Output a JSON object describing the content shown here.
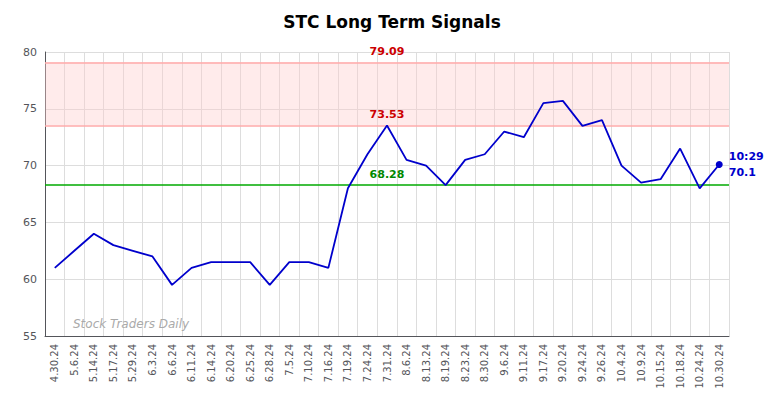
{
  "chart_data": {
    "type": "line",
    "title": "STC Long Term Signals",
    "categories": [
      "4.30.24",
      "5.6.24",
      "5.14.24",
      "5.17.24",
      "5.29.24",
      "6.3.24",
      "6.6.24",
      "6.11.24",
      "6.14.24",
      "6.20.24",
      "6.25.24",
      "6.28.24",
      "7.5.24",
      "7.10.24",
      "7.16.24",
      "7.19.24",
      "7.24.24",
      "7.31.24",
      "8.6.24",
      "8.13.24",
      "8.19.24",
      "8.23.24",
      "8.30.24",
      "9.6.24",
      "9.11.24",
      "9.17.24",
      "9.20.24",
      "9.24.24",
      "9.26.24",
      "10.4.24",
      "10.9.24",
      "10.15.24",
      "10.18.24",
      "10.24.24",
      "10.30.24"
    ],
    "values": [
      61.0,
      62.5,
      64.0,
      63.0,
      62.5,
      62.0,
      59.5,
      61.0,
      61.5,
      61.5,
      61.5,
      59.5,
      61.5,
      61.5,
      61.0,
      68.0,
      71.0,
      73.53,
      70.5,
      70.0,
      68.28,
      70.5,
      71.0,
      73.0,
      72.5,
      75.5,
      75.7,
      73.5,
      74.0,
      70.0,
      68.5,
      68.8,
      71.5,
      68.0,
      70.1
    ],
    "color": "#0000cc",
    "ylim": [
      55,
      80
    ],
    "yticks": [
      55,
      60,
      65,
      70,
      75,
      80
    ],
    "grid": true,
    "reference_lines": [
      {
        "value": 79.09,
        "label": "79.09",
        "color": "#ffaaaa",
        "label_color": "#cc0000"
      },
      {
        "value": 73.53,
        "label": "73.53",
        "color": "#ffaaaa",
        "label_color": "#cc0000"
      },
      {
        "value": 68.28,
        "label": "68.28",
        "color": "#00aa00",
        "label_color": "#008800"
      }
    ],
    "bands": [
      {
        "from": 73.53,
        "to": 79.09,
        "color": "#ffcccc"
      }
    ],
    "annotations": [
      {
        "text": "10:29",
        "color": "#0000cc"
      },
      {
        "text": "70.1",
        "color": "#0000cc"
      }
    ],
    "watermark": "Stock Traders Daily",
    "watermark_color": "#aaaaaa"
  }
}
